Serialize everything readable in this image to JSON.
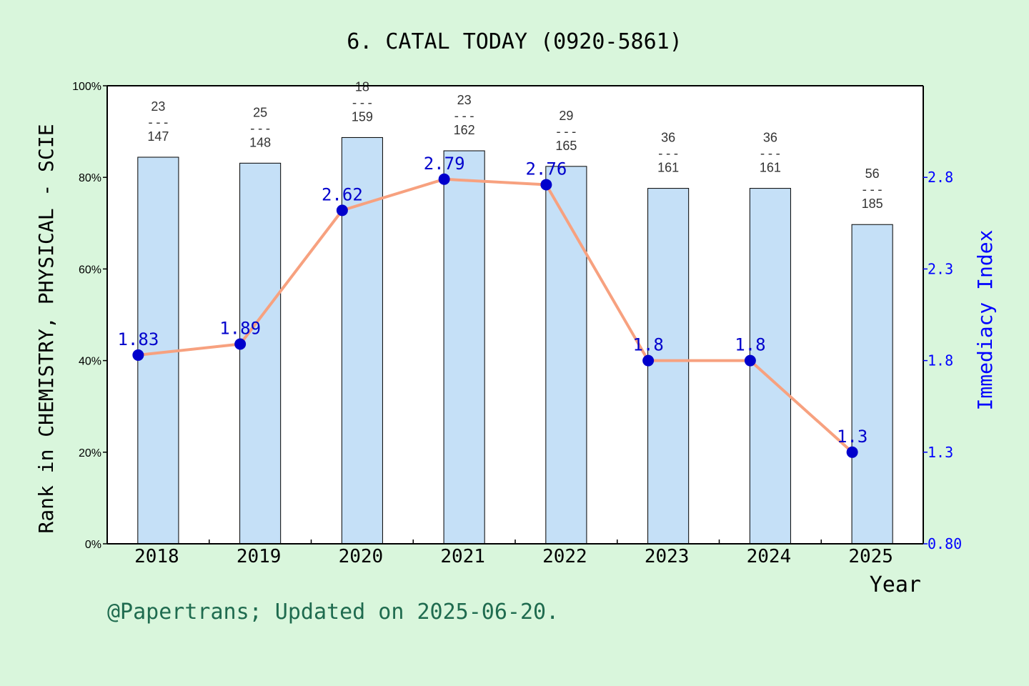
{
  "chart_data": {
    "type": "bar",
    "title": "6. CATAL TODAY (0920-5861)",
    "xlabel": "Year",
    "ylabel": "Rank in CHEMISTRY, PHYSICAL - SCIE",
    "y2label": "Immediacy Index",
    "footer": "@Papertrans; Updated on 2025-06-20.",
    "categories": [
      "2018",
      "2019",
      "2020",
      "2021",
      "2022",
      "2023",
      "2024",
      "2025"
    ],
    "ylim": [
      0,
      100
    ],
    "y_ticks": [
      "0%",
      "20%",
      "40%",
      "60%",
      "80%",
      "100%"
    ],
    "y2lim": [
      0.8,
      3.3
    ],
    "y2_ticks": [
      "0.80",
      "1.3",
      "1.8",
      "2.3",
      "2.8"
    ],
    "grid": false,
    "series": [
      {
        "kind": "bar",
        "values": [
          84.4,
          83.1,
          88.7,
          85.8,
          82.4,
          77.6,
          77.6,
          69.7
        ],
        "ranks": [
          "23",
          "25",
          "18",
          "23",
          "29",
          "36",
          "36",
          "56"
        ],
        "totals": [
          "147",
          "148",
          "159",
          "162",
          "165",
          "161",
          "161",
          "185"
        ],
        "color": "#c5e0f7"
      },
      {
        "kind": "line",
        "values": [
          1.83,
          1.89,
          2.62,
          2.79,
          2.76,
          1.8,
          1.8,
          1.3
        ],
        "labels": [
          "1.83",
          "1.89",
          "2.62",
          "2.79",
          "2.76",
          "1.8",
          "1.8",
          "1.3"
        ],
        "color": "#f7a17f",
        "marker_color": "#0000cc"
      }
    ]
  },
  "colors": {
    "background": "#d9f6dc",
    "plot_bg": "#ffffff",
    "axis_right": "#0000ff",
    "footer": "#1f6b4f"
  }
}
